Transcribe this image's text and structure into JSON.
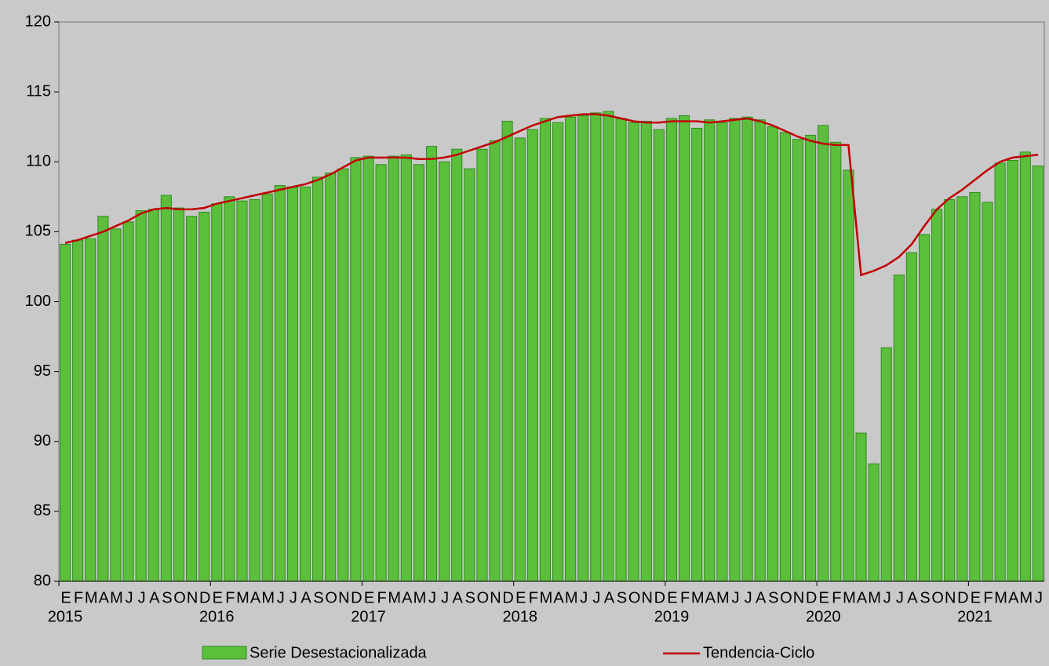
{
  "chart_data": {
    "type": "bar-line",
    "categories": [
      "E",
      "F",
      "M",
      "A",
      "M",
      "J",
      "J",
      "A",
      "S",
      "O",
      "N",
      "D",
      "E",
      "F",
      "M",
      "A",
      "M",
      "J",
      "J",
      "A",
      "S",
      "O",
      "N",
      "D",
      "E",
      "F",
      "M",
      "A",
      "M",
      "J",
      "J",
      "A",
      "S",
      "O",
      "N",
      "D",
      "E",
      "F",
      "M",
      "A",
      "M",
      "J",
      "J",
      "A",
      "S",
      "O",
      "N",
      "D",
      "E",
      "F",
      "M",
      "A",
      "M",
      "J",
      "J",
      "A",
      "S",
      "O",
      "N",
      "D",
      "E",
      "F",
      "M",
      "A",
      "M",
      "J",
      "J",
      "A",
      "S",
      "O",
      "N",
      "D",
      "E",
      "F",
      "M",
      "A",
      "M",
      "J"
    ],
    "years": [
      "2015",
      "2016",
      "2017",
      "2018",
      "2019",
      "2020",
      "2021"
    ],
    "series": [
      {
        "name": "Serie Desestacionalizada",
        "color": "#5cbf3c",
        "values": [
          104.1,
          104.4,
          104.5,
          106.1,
          105.2,
          105.7,
          106.5,
          106.6,
          107.6,
          106.7,
          106.1,
          106.4,
          107.0,
          107.5,
          107.2,
          107.3,
          107.7,
          108.3,
          108.2,
          108.2,
          108.9,
          109.2,
          109.5,
          110.3,
          110.4,
          109.8,
          110.4,
          110.5,
          109.8,
          111.1,
          110.0,
          110.9,
          109.5,
          110.9,
          111.5,
          112.9,
          111.7,
          112.3,
          113.1,
          112.8,
          113.2,
          113.3,
          113.5,
          113.6,
          113.1,
          112.8,
          112.9,
          112.3,
          113.1,
          113.3,
          112.4,
          113.0,
          112.8,
          113.1,
          113.2,
          113.0,
          112.5,
          112.1,
          111.6,
          111.9,
          112.6,
          111.4,
          109.4,
          90.6,
          88.4,
          96.7,
          101.9,
          103.5,
          104.8,
          106.6,
          107.3,
          107.5,
          107.8,
          107.1,
          109.9,
          110.1,
          110.7,
          109.7
        ]
      },
      {
        "name": "Tendencia-Ciclo",
        "color": "#c00000",
        "values": [
          104.2,
          104.4,
          104.7,
          105.0,
          105.4,
          105.8,
          106.3,
          106.6,
          106.7,
          106.6,
          106.6,
          106.7,
          107.0,
          107.2,
          107.4,
          107.6,
          107.8,
          108.0,
          108.2,
          108.4,
          108.7,
          109.1,
          109.6,
          110.1,
          110.3,
          110.3,
          110.3,
          110.3,
          110.2,
          110.2,
          110.3,
          110.5,
          110.8,
          111.1,
          111.4,
          111.8,
          112.2,
          112.6,
          112.9,
          113.2,
          113.3,
          113.4,
          113.4,
          113.3,
          113.1,
          112.9,
          112.8,
          112.8,
          112.9,
          112.9,
          112.9,
          112.8,
          112.9,
          113.0,
          113.1,
          112.9,
          112.6,
          112.2,
          111.8,
          111.5,
          111.3,
          111.2,
          111.2,
          101.9,
          102.2,
          102.6,
          103.2,
          104.1,
          105.4,
          106.6,
          107.4,
          108.0,
          108.7,
          109.4,
          110.0,
          110.3,
          110.4,
          110.5
        ]
      }
    ],
    "ylim": [
      80,
      120
    ],
    "yticks": [
      80,
      85,
      90,
      95,
      100,
      105,
      110,
      115,
      120
    ]
  }
}
